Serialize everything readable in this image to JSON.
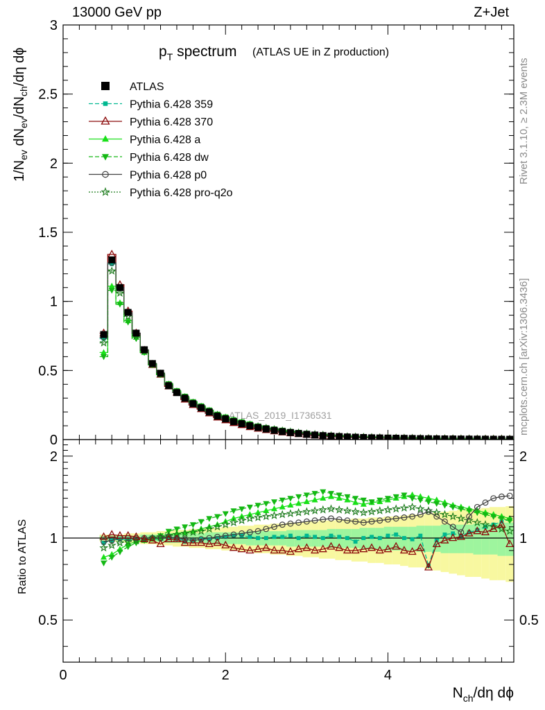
{
  "header": {
    "energy_label": "13000 GeV pp",
    "process_label": "Z+Jet"
  },
  "side_labels": {
    "rivet": "Rivet 3.1.10, ≥ 2.3M events",
    "mcplots": "mcplots.cern.ch [arXiv:1306.3436]"
  },
  "colors": {
    "atlas": "#000000",
    "p359": "#00b890",
    "p370": "#8b0a0a",
    "pa": "#18e018",
    "pdw": "#14b814",
    "pp0": "#404040",
    "pq2o": "#1a7a1a",
    "band_inner": "#9ef59e",
    "band_outer": "#f8f8a0"
  },
  "chart_data": [
    {
      "type": "line",
      "panel": "main",
      "title": "p_T spectrum",
      "title_main": "p",
      "title_sub": "T",
      "title_rest": " spectrum",
      "subtitle": "(ATLAS UE in Z production)",
      "watermark": "ATLAS_2019_I1736531",
      "xlabel": "N_ch/dη dϕ",
      "ylabel": "1/N_ev dN_ev/dN_ch/dη dϕ",
      "xlim": [
        0,
        5.55
      ],
      "ylim": [
        0,
        3.0
      ],
      "x_ticks": [
        0,
        2,
        4
      ],
      "x_tick_labels": [
        "0",
        "2",
        "4"
      ],
      "y_ticks": [
        0,
        0.5,
        1,
        1.5,
        2,
        2.5,
        3
      ],
      "y_tick_labels": [
        "0",
        "0.5",
        "1",
        "1.5",
        "2",
        "2.5",
        "3"
      ],
      "legend_position": "top-left",
      "x": [
        0.5,
        0.6,
        0.7,
        0.8,
        0.9,
        1.0,
        1.1,
        1.2,
        1.3,
        1.4,
        1.5,
        1.6,
        1.7,
        1.8,
        1.9,
        2.0,
        2.1,
        2.2,
        2.3,
        2.4,
        2.5,
        2.6,
        2.7,
        2.8,
        2.9,
        3.0,
        3.1,
        3.2,
        3.3,
        3.4,
        3.5,
        3.6,
        3.7,
        3.8,
        3.9,
        4.0,
        4.1,
        4.2,
        4.3,
        4.4,
        4.5,
        4.6,
        4.7,
        4.8,
        4.9,
        5.0,
        5.1,
        5.2,
        5.3,
        5.4,
        5.5
      ],
      "series": [
        {
          "name": "ATLAS",
          "key": "atlas",
          "marker": "square-filled",
          "values": [
            0.76,
            1.3,
            1.1,
            0.92,
            0.77,
            0.65,
            0.55,
            0.48,
            0.39,
            0.34,
            0.3,
            0.26,
            0.23,
            0.2,
            0.17,
            0.15,
            0.13,
            0.115,
            0.1,
            0.088,
            0.077,
            0.067,
            0.058,
            0.051,
            0.044,
            0.038,
            0.033,
            0.029,
            0.025,
            0.022,
            0.019,
            0.017,
            0.015,
            0.013,
            0.012,
            0.011,
            0.01,
            0.009,
            0.008,
            0.007,
            0.006,
            0.0055,
            0.005,
            0.0045,
            0.004,
            0.0036,
            0.0033,
            0.003,
            0.0027,
            0.0025,
            0.0023
          ]
        },
        {
          "name": "Pythia 6.428 359",
          "key": "p359",
          "marker": "square-small",
          "dash": "6,3",
          "values": [
            0.73,
            1.27,
            1.09,
            0.91,
            0.76,
            0.645,
            0.545,
            0.475,
            0.39,
            0.34,
            0.3,
            0.26,
            0.23,
            0.2,
            0.17,
            0.15,
            0.132,
            0.115,
            0.1,
            0.088,
            0.077,
            0.067,
            0.058,
            0.051,
            0.044,
            0.038,
            0.033,
            0.029,
            0.025,
            0.022,
            0.019,
            0.017,
            0.015,
            0.013,
            0.012,
            0.011,
            0.01,
            0.009,
            0.008,
            0.007,
            0.006,
            0.0055,
            0.005,
            0.0045,
            0.004,
            0.0036,
            0.0033,
            0.003,
            0.0027,
            0.0025,
            0.0023
          ]
        },
        {
          "name": "Pythia 6.428 370",
          "key": "p370",
          "marker": "triangle-open",
          "dash": "",
          "values": [
            0.77,
            1.34,
            1.12,
            0.93,
            0.77,
            0.645,
            0.54,
            0.47,
            0.385,
            0.34,
            0.29,
            0.25,
            0.22,
            0.19,
            0.16,
            0.14,
            0.12,
            0.105,
            0.09,
            0.079,
            0.069,
            0.06,
            0.052,
            0.046,
            0.04,
            0.035,
            0.03,
            0.027,
            0.023,
            0.02,
            0.017,
            0.015,
            0.014,
            0.012,
            0.011,
            0.01,
            0.009,
            0.008,
            0.007,
            0.0065,
            0.0055,
            0.005,
            0.0045,
            0.004,
            0.0036,
            0.0033,
            0.003,
            0.0028,
            0.0026,
            0.0024,
            0.0022
          ]
        },
        {
          "name": "Pythia 6.428 a",
          "key": "pa",
          "marker": "triangle-filled",
          "dash": "",
          "values": [
            0.63,
            1.11,
            0.99,
            0.86,
            0.74,
            0.63,
            0.54,
            0.47,
            0.4,
            0.35,
            0.31,
            0.27,
            0.24,
            0.21,
            0.18,
            0.16,
            0.14,
            0.125,
            0.11,
            0.097,
            0.085,
            0.075,
            0.066,
            0.058,
            0.051,
            0.045,
            0.04,
            0.035,
            0.031,
            0.027,
            0.024,
            0.021,
            0.019,
            0.017,
            0.015,
            0.013,
            0.012,
            0.011,
            0.01,
            0.009,
            0.008,
            0.007,
            0.0065,
            0.006,
            0.0055,
            0.005,
            0.0045,
            0.004,
            0.0037,
            0.0034,
            0.0031
          ]
        },
        {
          "name": "Pythia 6.428 dw",
          "key": "pdw",
          "marker": "triangle-down-filled",
          "dash": "6,3",
          "values": [
            0.6,
            1.08,
            0.98,
            0.85,
            0.73,
            0.63,
            0.54,
            0.47,
            0.405,
            0.355,
            0.315,
            0.275,
            0.245,
            0.215,
            0.185,
            0.165,
            0.145,
            0.13,
            0.115,
            0.1,
            0.088,
            0.078,
            0.069,
            0.06,
            0.053,
            0.047,
            0.041,
            0.036,
            0.032,
            0.028,
            0.025,
            0.022,
            0.02,
            0.018,
            0.016,
            0.014,
            0.013,
            0.012,
            0.011,
            0.01,
            0.009,
            0.008,
            0.007,
            0.0065,
            0.006,
            0.0055,
            0.005,
            0.0045,
            0.004,
            0.0037,
            0.0034
          ]
        },
        {
          "name": "Pythia 6.428 p0",
          "key": "pp0",
          "marker": "circle-open",
          "dash": "",
          "values": [
            0.74,
            1.28,
            1.1,
            0.92,
            0.77,
            0.65,
            0.55,
            0.48,
            0.395,
            0.34,
            0.3,
            0.26,
            0.23,
            0.2,
            0.17,
            0.15,
            0.132,
            0.117,
            0.102,
            0.09,
            0.079,
            0.069,
            0.06,
            0.053,
            0.046,
            0.04,
            0.035,
            0.031,
            0.027,
            0.023,
            0.02,
            0.018,
            0.016,
            0.014,
            0.013,
            0.012,
            0.011,
            0.01,
            0.009,
            0.008,
            0.007,
            0.006,
            0.0055,
            0.005,
            0.0045,
            0.004,
            0.0036,
            0.0033,
            0.003,
            0.0028,
            0.0026
          ]
        },
        {
          "name": "Pythia 6.428 pro-q2o",
          "key": "pq2o",
          "marker": "star-open",
          "dash": "2,2",
          "values": [
            0.7,
            1.22,
            1.06,
            0.89,
            0.75,
            0.64,
            0.545,
            0.475,
            0.395,
            0.345,
            0.305,
            0.265,
            0.235,
            0.205,
            0.178,
            0.157,
            0.138,
            0.122,
            0.107,
            0.094,
            0.083,
            0.073,
            0.064,
            0.056,
            0.049,
            0.043,
            0.038,
            0.033,
            0.029,
            0.025,
            0.022,
            0.02,
            0.018,
            0.016,
            0.014,
            0.013,
            0.012,
            0.011,
            0.01,
            0.009,
            0.008,
            0.007,
            0.0065,
            0.006,
            0.0055,
            0.005,
            0.0045,
            0.004,
            0.0037,
            0.0034,
            0.0031
          ]
        }
      ]
    },
    {
      "type": "line",
      "panel": "ratio",
      "title": "",
      "xlabel": "N_ch/dη dϕ",
      "ylabel": "Ratio to ATLAS",
      "xlim": [
        0,
        5.55
      ],
      "ylim": [
        0.35,
        2.3
      ],
      "x_ticks": [
        0,
        2,
        4
      ],
      "x_tick_labels": [
        "0",
        "2",
        "4"
      ],
      "y_ticks": [
        0.5,
        1,
        2
      ],
      "y_tick_labels": [
        "0.5",
        "1",
        "2"
      ],
      "x": [
        0.5,
        0.6,
        0.7,
        0.8,
        0.9,
        1.0,
        1.1,
        1.2,
        1.3,
        1.4,
        1.5,
        1.6,
        1.7,
        1.8,
        1.9,
        2.0,
        2.1,
        2.2,
        2.3,
        2.4,
        2.5,
        2.6,
        2.7,
        2.8,
        2.9,
        3.0,
        3.1,
        3.2,
        3.3,
        3.4,
        3.5,
        3.6,
        3.7,
        3.8,
        3.9,
        4.0,
        4.1,
        4.2,
        4.3,
        4.4,
        4.5,
        4.6,
        4.7,
        4.8,
        4.9,
        5.0,
        5.1,
        5.2,
        5.3,
        5.4,
        5.5
      ],
      "band_inner": [
        0.02,
        0.02,
        0.02,
        0.02,
        0.02,
        0.03,
        0.03,
        0.03,
        0.04,
        0.04,
        0.04,
        0.04,
        0.04,
        0.05,
        0.05,
        0.05,
        0.05,
        0.05,
        0.06,
        0.06,
        0.06,
        0.06,
        0.06,
        0.07,
        0.07,
        0.07,
        0.07,
        0.07,
        0.08,
        0.08,
        0.08,
        0.08,
        0.09,
        0.09,
        0.09,
        0.1,
        0.1,
        0.1,
        0.1,
        0.11,
        0.11,
        0.11,
        0.12,
        0.12,
        0.12,
        0.12,
        0.13,
        0.13,
        0.13,
        0.14,
        0.14
      ],
      "band_outer": [
        0.03,
        0.03,
        0.03,
        0.04,
        0.04,
        0.05,
        0.05,
        0.06,
        0.06,
        0.07,
        0.07,
        0.08,
        0.08,
        0.09,
        0.09,
        0.1,
        0.1,
        0.11,
        0.11,
        0.12,
        0.12,
        0.13,
        0.13,
        0.14,
        0.14,
        0.15,
        0.15,
        0.16,
        0.16,
        0.17,
        0.17,
        0.18,
        0.18,
        0.19,
        0.19,
        0.2,
        0.2,
        0.21,
        0.22,
        0.22,
        0.23,
        0.24,
        0.25,
        0.26,
        0.27,
        0.28,
        0.28,
        0.29,
        0.3,
        0.3,
        0.31
      ],
      "series": [
        {
          "name": "Pythia 6.428 359",
          "key": "p359",
          "marker": "square-small",
          "dash": "6,3",
          "values": [
            0.96,
            0.98,
            0.99,
            0.99,
            0.99,
            0.99,
            0.99,
            0.99,
            1.0,
            1.0,
            0.97,
            0.98,
            0.99,
            0.99,
            1.0,
            1.01,
            1.02,
            1.02,
            1.01,
            1.0,
            1.0,
            1.01,
            1.01,
            1.02,
            1.0,
            1.02,
            1.01,
            1.0,
            1.02,
            1.01,
            1.0,
            0.97,
            1.0,
            1.01,
            1.0,
            1.02,
            1.03,
            1.0,
            0.99,
            1.02,
            0.79,
            0.98,
            1.03,
            1.04,
            1.02,
            1.05,
            1.07,
            1.1,
            1.12,
            1.15,
            1.17
          ]
        },
        {
          "name": "Pythia 6.428 370",
          "key": "p370",
          "marker": "triangle-open",
          "dash": "",
          "values": [
            1.01,
            1.03,
            1.02,
            1.02,
            1.01,
            0.99,
            0.98,
            0.95,
            0.99,
            0.99,
            0.96,
            0.96,
            0.96,
            0.95,
            0.96,
            0.94,
            0.92,
            0.91,
            0.9,
            0.91,
            0.92,
            0.9,
            0.9,
            0.89,
            0.91,
            0.92,
            0.9,
            0.91,
            0.93,
            0.92,
            0.9,
            0.9,
            0.91,
            0.92,
            0.9,
            0.91,
            0.93,
            0.9,
            0.89,
            0.92,
            0.78,
            0.95,
            0.98,
            1.0,
            1.01,
            1.04,
            1.06,
            1.05,
            1.08,
            1.12,
            0.95
          ]
        },
        {
          "name": "Pythia 6.428 a",
          "key": "pa",
          "marker": "triangle-filled",
          "dash": "",
          "values": [
            0.85,
            0.87,
            0.91,
            0.95,
            0.97,
            0.98,
            0.99,
            1.0,
            1.03,
            1.04,
            1.05,
            1.06,
            1.08,
            1.1,
            1.12,
            1.15,
            1.18,
            1.2,
            1.22,
            1.24,
            1.26,
            1.28,
            1.3,
            1.32,
            1.34,
            1.36,
            1.38,
            1.4,
            1.42,
            1.4,
            1.38,
            1.35,
            1.33,
            1.35,
            1.36,
            1.38,
            1.4,
            1.42,
            1.44,
            1.42,
            1.4,
            1.38,
            1.35,
            1.32,
            1.3,
            1.28,
            1.26,
            1.24,
            1.22,
            1.2,
            1.18
          ]
        },
        {
          "name": "Pythia 6.428 dw",
          "key": "pdw",
          "marker": "triangle-down-filled",
          "dash": "6,3",
          "values": [
            0.81,
            0.85,
            0.89,
            0.93,
            0.96,
            0.98,
            1.0,
            1.02,
            1.06,
            1.08,
            1.1,
            1.12,
            1.15,
            1.18,
            1.2,
            1.23,
            1.26,
            1.28,
            1.3,
            1.32,
            1.34,
            1.36,
            1.38,
            1.4,
            1.42,
            1.44,
            1.46,
            1.48,
            1.46,
            1.44,
            1.42,
            1.4,
            1.38,
            1.36,
            1.38,
            1.4,
            1.42,
            1.44,
            1.4,
            1.38,
            1.36,
            1.34,
            1.32,
            1.3,
            1.28,
            1.26,
            1.24,
            1.22,
            1.2,
            1.18,
            1.16
          ]
        },
        {
          "name": "Pythia 6.428 p0",
          "key": "pp0",
          "marker": "circle-open",
          "dash": "",
          "values": [
            0.97,
            0.98,
            1.0,
            1.0,
            1.0,
            1.0,
            1.0,
            1.0,
            1.01,
            1.0,
            0.99,
            0.98,
            0.99,
            1.0,
            1.01,
            1.02,
            1.03,
            1.04,
            1.05,
            1.06,
            1.08,
            1.1,
            1.12,
            1.13,
            1.14,
            1.15,
            1.16,
            1.17,
            1.18,
            1.17,
            1.16,
            1.15,
            1.14,
            1.15,
            1.16,
            1.17,
            1.18,
            1.19,
            1.2,
            1.22,
            1.25,
            1.2,
            1.15,
            1.1,
            1.05,
            1.2,
            1.3,
            1.35,
            1.4,
            1.42,
            1.43
          ]
        },
        {
          "name": "Pythia 6.428 pro-q2o",
          "key": "pq2o",
          "marker": "star-open",
          "dash": "2,2",
          "values": [
            0.92,
            0.94,
            0.96,
            0.97,
            0.98,
            0.99,
            1.0,
            1.01,
            1.02,
            1.03,
            1.04,
            1.05,
            1.06,
            1.08,
            1.1,
            1.12,
            1.14,
            1.16,
            1.18,
            1.19,
            1.2,
            1.21,
            1.22,
            1.23,
            1.24,
            1.25,
            1.26,
            1.27,
            1.28,
            1.27,
            1.26,
            1.25,
            1.24,
            1.25,
            1.26,
            1.27,
            1.28,
            1.29,
            1.3,
            1.28,
            1.26,
            1.24,
            1.22,
            1.2,
            1.18,
            1.16,
            1.14,
            1.12,
            1.1,
            1.08,
            1.06
          ]
        }
      ]
    }
  ]
}
